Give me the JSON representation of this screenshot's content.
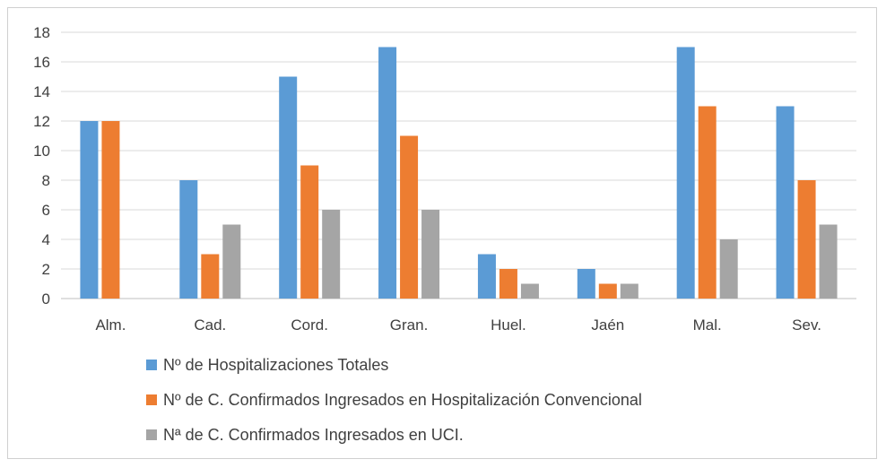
{
  "chart_data": {
    "type": "bar",
    "title": "",
    "xlabel": "",
    "ylabel": "",
    "categories": [
      "Alm.",
      "Cad.",
      "Cord.",
      "Gran.",
      "Huel.",
      "Jaén",
      "Mal.",
      "Sev."
    ],
    "series": [
      {
        "name": "Nº de Hospitalizaciones Totales",
        "color": "#5b9bd5",
        "values": [
          12,
          8,
          15,
          17,
          3,
          2,
          17,
          13
        ]
      },
      {
        "name": "Nº de C. Confirmados Ingresados en Hospitalización Convencional",
        "color": "#ed7d31",
        "values": [
          12,
          3,
          9,
          11,
          2,
          1,
          13,
          8
        ]
      },
      {
        "name": "Nª de C. Confirmados Ingresados en UCI.",
        "color": "#a5a5a5",
        "values": [
          0,
          5,
          6,
          6,
          1,
          1,
          4,
          5
        ]
      }
    ],
    "ylim": [
      0,
      18
    ],
    "yticks": [
      0,
      2,
      4,
      6,
      8,
      10,
      12,
      14,
      16,
      18
    ],
    "grid": true,
    "legend_position": "bottom-left"
  }
}
